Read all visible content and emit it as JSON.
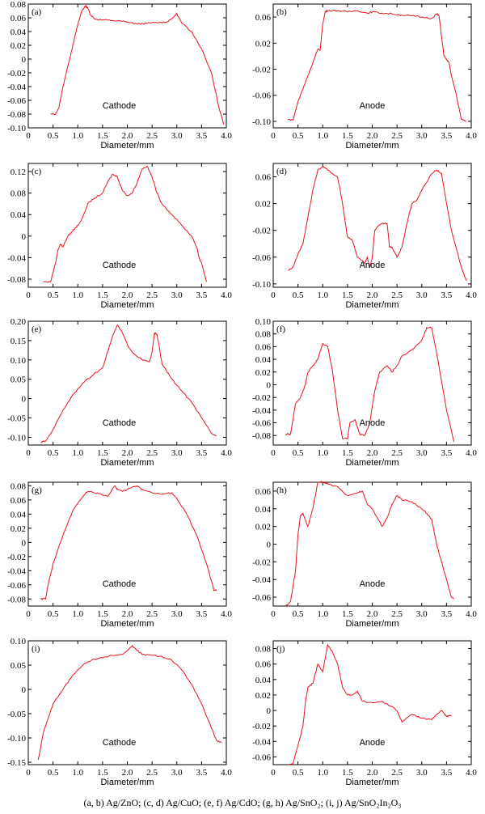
{
  "caption": "(a, b) Ag/ZnO; (c, d) Ag/CuO;  (e, f) Ag/CdO; (g, h) Ag/SnO₂; (i, j) Ag/SnO₂In₂O₃",
  "line_color": "#e8141e",
  "chart_data": [
    {
      "type": "line",
      "panel_label": "(a)",
      "inner_label": "Cathode",
      "xlabel": "Diameter/mm",
      "ylabel": "",
      "xlim": [
        0,
        4.0
      ],
      "ylim": [
        -0.1,
        0.08
      ],
      "xticks": [
        0,
        0.5,
        1.0,
        1.5,
        2.0,
        2.5,
        3.0,
        3.5,
        4.0
      ],
      "yticks": [
        0.08,
        0.06,
        0.04,
        0.02,
        0,
        -0.02,
        -0.04,
        -0.06,
        -0.08,
        -0.1
      ],
      "x": [
        0.45,
        0.55,
        0.62,
        0.7,
        0.8,
        0.9,
        1.0,
        1.08,
        1.15,
        1.2,
        1.25,
        1.35,
        1.5,
        1.7,
        1.9,
        2.0,
        2.2,
        2.4,
        2.6,
        2.8,
        2.95,
        3.0,
        3.1,
        3.3,
        3.5,
        3.7,
        3.85,
        3.95
      ],
      "y": [
        -0.08,
        -0.08,
        -0.07,
        -0.04,
        -0.01,
        0.02,
        0.05,
        0.07,
        0.077,
        0.075,
        0.065,
        0.058,
        0.057,
        0.056,
        0.055,
        0.054,
        0.051,
        0.052,
        0.053,
        0.054,
        0.062,
        0.066,
        0.052,
        0.04,
        0.015,
        -0.02,
        -0.07,
        -0.095
      ]
    },
    {
      "type": "line",
      "panel_label": "(b)",
      "inner_label": "Anode",
      "xlabel": "Diameter/mm",
      "ylabel": "",
      "xlim": [
        0,
        4.0
      ],
      "ylim": [
        -0.11,
        0.08
      ],
      "xticks": [
        0,
        0.5,
        1.0,
        1.5,
        2.0,
        2.5,
        3.0,
        3.5,
        4.0
      ],
      "yticks": [
        0.06,
        0.02,
        -0.02,
        -0.06,
        -0.1
      ],
      "x": [
        0.3,
        0.4,
        0.5,
        0.6,
        0.7,
        0.8,
        0.9,
        0.95,
        1.0,
        1.05,
        1.1,
        1.3,
        1.5,
        1.7,
        1.9,
        2.0,
        2.2,
        2.4,
        2.6,
        2.8,
        3.0,
        3.2,
        3.3,
        3.35,
        3.4,
        3.45,
        3.55,
        3.6,
        3.7,
        3.8,
        3.9
      ],
      "y": [
        -0.097,
        -0.098,
        -0.07,
        -0.05,
        -0.03,
        -0.01,
        0.01,
        0.01,
        0.05,
        0.068,
        0.07,
        0.07,
        0.068,
        0.07,
        0.066,
        0.068,
        0.066,
        0.065,
        0.063,
        0.062,
        0.06,
        0.058,
        0.065,
        0.062,
        0.03,
        0.0,
        -0.01,
        -0.03,
        -0.06,
        -0.097,
        -0.1
      ]
    },
    {
      "type": "line",
      "panel_label": "(c)",
      "inner_label": "Cathode",
      "xlabel": "Diameter/mm",
      "ylabel": "",
      "xlim": [
        0,
        4.0
      ],
      "ylim": [
        -0.095,
        0.135
      ],
      "xticks": [
        0,
        0.5,
        1.0,
        1.5,
        2.0,
        2.5,
        3.0,
        3.5,
        4.0
      ],
      "yticks": [
        0.12,
        0.08,
        0.04,
        0,
        -0.04,
        -0.08
      ],
      "x": [
        0.3,
        0.45,
        0.55,
        0.6,
        0.65,
        0.7,
        0.8,
        0.9,
        1.0,
        1.1,
        1.2,
        1.3,
        1.5,
        1.6,
        1.7,
        1.8,
        1.9,
        2.0,
        2.1,
        2.2,
        2.3,
        2.4,
        2.5,
        2.6,
        2.7,
        2.9,
        3.1,
        3.3,
        3.4,
        3.45,
        3.5,
        3.6
      ],
      "y": [
        -0.085,
        -0.085,
        -0.05,
        -0.025,
        -0.015,
        -0.02,
        0.0,
        0.01,
        0.02,
        0.035,
        0.06,
        0.068,
        0.08,
        0.1,
        0.115,
        0.11,
        0.085,
        0.075,
        0.08,
        0.1,
        0.125,
        0.13,
        0.11,
        0.08,
        0.06,
        0.04,
        0.02,
        0.0,
        -0.02,
        -0.04,
        -0.05,
        -0.085
      ]
    },
    {
      "type": "line",
      "panel_label": "(d)",
      "inner_label": "Anode",
      "xlabel": "Diameter/mm",
      "ylabel": "",
      "xlim": [
        0,
        4.0
      ],
      "ylim": [
        -0.105,
        0.08
      ],
      "xticks": [
        0,
        0.5,
        1.0,
        1.5,
        2.0,
        2.5,
        3.0,
        3.5,
        4.0
      ],
      "yticks": [
        0.06,
        0.02,
        -0.02,
        -0.06,
        -0.1
      ],
      "x": [
        0.3,
        0.4,
        0.5,
        0.6,
        0.8,
        0.9,
        1.0,
        1.1,
        1.3,
        1.4,
        1.5,
        1.6,
        1.7,
        1.8,
        1.85,
        1.9,
        1.95,
        2.0,
        2.05,
        2.1,
        2.2,
        2.3,
        2.35,
        2.4,
        2.5,
        2.6,
        2.7,
        2.8,
        2.9,
        3.0,
        3.2,
        3.3,
        3.4,
        3.5,
        3.6,
        3.8,
        3.9
      ],
      "y": [
        -0.08,
        -0.075,
        -0.055,
        -0.04,
        0.04,
        0.07,
        0.075,
        0.07,
        0.06,
        0.02,
        -0.03,
        -0.035,
        -0.06,
        -0.065,
        -0.07,
        -0.06,
        -0.075,
        -0.06,
        -0.02,
        -0.015,
        -0.01,
        -0.01,
        -0.045,
        -0.045,
        -0.06,
        -0.045,
        -0.01,
        0.02,
        0.025,
        0.04,
        0.065,
        0.07,
        0.065,
        0.02,
        -0.02,
        -0.075,
        -0.095
      ]
    },
    {
      "type": "line",
      "panel_label": "(e)",
      "inner_label": "Cathode",
      "xlabel": "Diameter/mm",
      "ylabel": "",
      "xlim": [
        0,
        4.0
      ],
      "ylim": [
        -0.12,
        0.2
      ],
      "xticks": [
        0,
        0.5,
        1.0,
        1.5,
        2.0,
        2.5,
        3.0,
        3.5,
        4.0
      ],
      "yticks": [
        0.2,
        0.15,
        0.1,
        0.05,
        0,
        -0.05,
        -0.1
      ],
      "x": [
        0.25,
        0.35,
        0.5,
        0.7,
        0.9,
        1.1,
        1.3,
        1.5,
        1.6,
        1.7,
        1.8,
        1.9,
        2.0,
        2.1,
        2.3,
        2.45,
        2.5,
        2.55,
        2.6,
        2.65,
        2.7,
        2.9,
        3.1,
        3.3,
        3.5,
        3.7,
        3.8
      ],
      "y": [
        -0.113,
        -0.11,
        -0.08,
        -0.03,
        0.01,
        0.04,
        0.06,
        0.08,
        0.12,
        0.16,
        0.19,
        0.17,
        0.14,
        0.12,
        0.1,
        0.095,
        0.12,
        0.17,
        0.165,
        0.13,
        0.09,
        0.05,
        0.02,
        -0.01,
        -0.05,
        -0.09,
        -0.097
      ]
    },
    {
      "type": "line",
      "panel_label": "(f)",
      "inner_label": "Anode",
      "xlabel": "Diameter/mm",
      "ylabel": "",
      "xlim": [
        0,
        4.0
      ],
      "ylim": [
        -0.095,
        0.1
      ],
      "xticks": [
        0,
        0.5,
        1.0,
        1.5,
        2.0,
        2.5,
        3.0,
        3.5,
        4.0
      ],
      "yticks": [
        0.1,
        0.08,
        0.06,
        0.04,
        0.02,
        0,
        -0.02,
        -0.04,
        -0.06,
        -0.08
      ],
      "x": [
        0.25,
        0.35,
        0.45,
        0.55,
        0.65,
        0.7,
        0.8,
        0.9,
        1.0,
        1.1,
        1.2,
        1.3,
        1.4,
        1.5,
        1.55,
        1.65,
        1.75,
        1.85,
        1.95,
        2.05,
        2.15,
        2.3,
        2.4,
        2.5,
        2.6,
        2.8,
        3.0,
        3.1,
        3.2,
        3.3,
        3.5,
        3.65
      ],
      "y": [
        -0.078,
        -0.078,
        -0.03,
        -0.02,
        0.0,
        0.02,
        0.03,
        0.04,
        0.065,
        0.06,
        0.02,
        -0.04,
        -0.085,
        -0.085,
        -0.06,
        -0.055,
        -0.078,
        -0.08,
        -0.06,
        -0.01,
        0.02,
        0.03,
        0.02,
        0.03,
        0.045,
        0.055,
        0.07,
        0.09,
        0.09,
        0.05,
        -0.04,
        -0.09
      ]
    },
    {
      "type": "line",
      "panel_label": "(g)",
      "inner_label": "Cathode",
      "xlabel": "Diameter/mm",
      "ylabel": "",
      "xlim": [
        0,
        4.0
      ],
      "ylim": [
        -0.09,
        0.085
      ],
      "xticks": [
        0,
        0.5,
        1.0,
        1.5,
        2.0,
        2.5,
        3.0,
        3.5,
        4.0
      ],
      "yticks": [
        0.08,
        0.06,
        0.04,
        0.02,
        0,
        -0.02,
        -0.04,
        -0.06,
        -0.08
      ],
      "x": [
        0.25,
        0.35,
        0.4,
        0.5,
        0.7,
        0.9,
        1.1,
        1.2,
        1.4,
        1.6,
        1.75,
        1.8,
        1.9,
        2.1,
        2.2,
        2.3,
        2.5,
        2.7,
        2.9,
        3.0,
        3.2,
        3.4,
        3.6,
        3.75,
        3.8
      ],
      "y": [
        -0.08,
        -0.08,
        -0.06,
        -0.03,
        0.01,
        0.045,
        0.065,
        0.072,
        0.07,
        0.065,
        0.08,
        0.075,
        0.072,
        0.078,
        0.08,
        0.075,
        0.07,
        0.068,
        0.07,
        0.062,
        0.04,
        0.01,
        -0.03,
        -0.068,
        -0.068
      ]
    },
    {
      "type": "line",
      "panel_label": "(h)",
      "inner_label": "Anode",
      "xlabel": "Diameter/mm",
      "ylabel": "",
      "xlim": [
        0,
        4.0
      ],
      "ylim": [
        -0.07,
        0.07
      ],
      "xticks": [
        0,
        0.5,
        1.0,
        1.5,
        2.0,
        2.5,
        3.0,
        3.5,
        4.0
      ],
      "yticks": [
        0.06,
        0.04,
        0.02,
        0,
        -0.02,
        -0.04,
        -0.06
      ],
      "x": [
        0.25,
        0.35,
        0.45,
        0.5,
        0.55,
        0.6,
        0.7,
        0.8,
        0.9,
        1.0,
        1.1,
        1.3,
        1.5,
        1.7,
        1.8,
        1.9,
        2.0,
        2.1,
        2.2,
        2.3,
        2.4,
        2.5,
        2.6,
        2.8,
        3.0,
        3.1,
        3.2,
        3.3,
        3.4,
        3.5,
        3.6,
        3.65
      ],
      "y": [
        -0.07,
        -0.065,
        -0.03,
        0.01,
        0.032,
        0.035,
        0.02,
        0.04,
        0.07,
        0.07,
        0.068,
        0.065,
        0.055,
        0.058,
        0.06,
        0.045,
        0.04,
        0.03,
        0.02,
        0.03,
        0.045,
        0.055,
        0.05,
        0.048,
        0.04,
        0.035,
        0.028,
        0.0,
        -0.02,
        -0.04,
        -0.06,
        -0.062
      ]
    },
    {
      "type": "line",
      "panel_label": "(i)",
      "inner_label": "Cathode",
      "xlabel": "Diameter/mm",
      "ylabel": "",
      "xlim": [
        0,
        4.0
      ],
      "ylim": [
        -0.155,
        0.1
      ],
      "xticks": [
        0,
        0.5,
        1.0,
        1.5,
        2.0,
        2.5,
        3.0,
        3.5,
        4.0
      ],
      "yticks": [
        0.1,
        0.05,
        0,
        -0.05,
        -0.1,
        -0.15
      ],
      "x": [
        0.2,
        0.25,
        0.3,
        0.4,
        0.5,
        0.7,
        0.9,
        1.1,
        1.3,
        1.5,
        1.7,
        1.9,
        2.0,
        2.1,
        2.2,
        2.3,
        2.5,
        2.7,
        2.9,
        3.1,
        3.3,
        3.5,
        3.7,
        3.8,
        3.9
      ],
      "y": [
        -0.145,
        -0.12,
        -0.09,
        -0.06,
        -0.03,
        0.0,
        0.03,
        0.05,
        0.062,
        0.065,
        0.07,
        0.072,
        0.08,
        0.09,
        0.08,
        0.072,
        0.07,
        0.068,
        0.06,
        0.04,
        0.01,
        -0.03,
        -0.08,
        -0.105,
        -0.11
      ]
    },
    {
      "type": "line",
      "panel_label": "(j)",
      "inner_label": "Anode",
      "xlabel": "Diameter/mm",
      "ylabel": "",
      "xlim": [
        0,
        4.0
      ],
      "ylim": [
        -0.07,
        0.09
      ],
      "xticks": [
        0,
        0.5,
        1.0,
        1.5,
        2.0,
        2.5,
        3.0,
        3.5,
        4.0
      ],
      "yticks": [
        0.08,
        0.06,
        0.04,
        0.02,
        0,
        -0.02,
        -0.04,
        -0.06
      ],
      "x": [
        0.3,
        0.4,
        0.5,
        0.6,
        0.65,
        0.7,
        0.8,
        0.9,
        1.0,
        1.1,
        1.2,
        1.3,
        1.4,
        1.5,
        1.6,
        1.7,
        1.8,
        2.0,
        2.2,
        2.4,
        2.5,
        2.6,
        2.8,
        3.0,
        3.2,
        3.3,
        3.4,
        3.5,
        3.6
      ],
      "y": [
        -0.07,
        -0.068,
        -0.045,
        -0.02,
        0.01,
        0.03,
        0.035,
        0.06,
        0.05,
        0.085,
        0.075,
        0.06,
        0.03,
        0.02,
        0.02,
        0.025,
        0.012,
        0.01,
        0.012,
        0.005,
        0.0,
        -0.015,
        -0.005,
        -0.01,
        -0.012,
        -0.005,
        0.0,
        -0.008,
        -0.006
      ]
    }
  ]
}
